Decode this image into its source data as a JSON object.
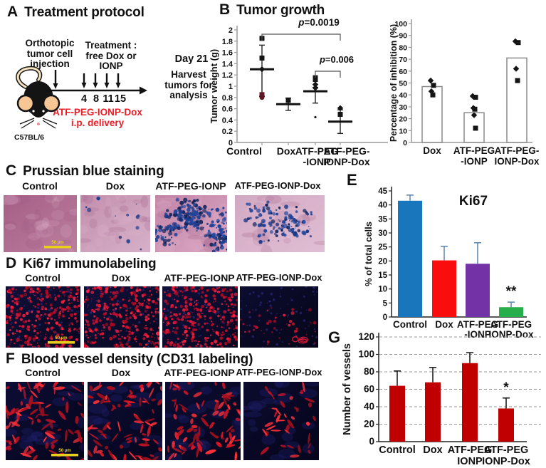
{
  "panelA": {
    "letter": "A",
    "title": "Treatment protocol",
    "injection_label": "Orthotopic\ntumor cell\ninjection",
    "treatment_label": "Treatment :\nfree Dox or\nIONP",
    "day_label": "Day 21",
    "harvest_label": "Harvest\ntumors for\nanalysis",
    "timeline_days": [
      "4",
      "8",
      "11",
      "15"
    ],
    "delivery_line1": "ATF-PEG-IONP-Dox",
    "delivery_line2": "i.p. delivery",
    "delivery_color": "#ed1c24",
    "mouse_strain": "C57BL/6"
  },
  "panelB": {
    "letter": "B",
    "title": "Tumor growth"
  },
  "panelC": {
    "letter": "C",
    "title": "Prussian blue staining",
    "scalebar": "50 µm",
    "images": [
      {
        "label": "Control",
        "render": "bf-none",
        "appearance": "magenta tissue, no iron staining"
      },
      {
        "label": "Dox",
        "render": "bf-light",
        "appearance": "pale pink tissue, no iron staining"
      },
      {
        "label": "ATF-PEG-IONP",
        "render": "bf-heavy",
        "appearance": "dense Prussian blue iron deposits"
      },
      {
        "label": "ATF-PEG-IONP-Dox",
        "render": "bf-moderate",
        "appearance": "moderate Prussian blue iron deposits"
      }
    ]
  },
  "panelD": {
    "letter": "D",
    "title": "Ki67 immunolabeling",
    "scalebar": "50 µm",
    "images": [
      {
        "label": "Control",
        "render": "fl-dots-dense",
        "appearance": "abundant red Ki67+ nuclei"
      },
      {
        "label": "Dox",
        "render": "fl-dots-dense",
        "appearance": "abundant red Ki67+ nuclei"
      },
      {
        "label": "ATF-PEG-IONP",
        "render": "fl-dots-dense",
        "appearance": "abundant red Ki67+ nuclei"
      },
      {
        "label": "ATF-PEG-IONP-Dox",
        "render": "fl-dots-sparse",
        "appearance": "few red Ki67+ nuclei"
      }
    ]
  },
  "panelE": {
    "letter": "E"
  },
  "panelF": {
    "letter": "F",
    "title": "Blood vessel density (CD31 labeling)",
    "scalebar": "50 µm",
    "images": [
      {
        "label": "Control",
        "render": "fl-vessels-many",
        "appearance": "many red CD31+ vessels"
      },
      {
        "label": "Dox",
        "render": "fl-vessels-many",
        "appearance": "many red CD31+ vessels"
      },
      {
        "label": "ATF-PEG-IONP",
        "render": "fl-vessels-many",
        "appearance": "many red CD31+ vessels"
      },
      {
        "label": "ATF-PEG-IONP-Dox",
        "render": "fl-vessels-few",
        "appearance": "few red CD31+ vessels"
      }
    ]
  },
  "panelG": {
    "letter": "G"
  },
  "chart_data": [
    {
      "type": "scatter",
      "panel": "B",
      "title": "Tumor growth",
      "ylabel": "Tumor weight (g)",
      "ylim": [
        0,
        2
      ],
      "yticks": [
        "0",
        "0.2",
        "0.4",
        "0.6",
        "0.8",
        "1",
        "1.2",
        "1.4",
        "1.6",
        "1.8",
        "2"
      ],
      "categories": [
        [
          "Control"
        ],
        [
          "Dox"
        ],
        [
          "ATF-PEG",
          "-IONP"
        ],
        [
          "ATF-PEG-",
          "IONP-Dox"
        ]
      ],
      "groups": [
        {
          "name": "Control",
          "points": [
            1.85,
            1.5,
            1.3,
            0.85,
            0.8
          ],
          "shapes": [
            "square",
            "square",
            "diamond",
            "square",
            "circle"
          ],
          "colors": [
            "#151515",
            "#151515",
            "#151515",
            "#5f1726",
            "#5f1726"
          ],
          "mean": 1.3,
          "err_lo": 0.82,
          "err_hi": 1.73
        },
        {
          "name": "Dox",
          "points": [
            0.75
          ],
          "shapes": [
            "square"
          ],
          "colors": [
            "#151515"
          ],
          "mean": 0.68,
          "err_lo": 0.57,
          "err_hi": 0.79
        },
        {
          "name": "ATF-PEG-IONP",
          "points": [
            1.15,
            1.12,
            1.03,
            0.97,
            0.45
          ],
          "shapes": [
            "square",
            "square",
            "diamond",
            "diamond",
            "dot"
          ],
          "colors": [
            "#151515",
            "#151515",
            "#151515",
            "#151515",
            "#151515"
          ],
          "mean": 0.91,
          "err_lo": 0.7,
          "err_hi": 0.98
        },
        {
          "name": "ATF-PEG-IONP-Dox",
          "points": [
            0.61,
            0.5
          ],
          "shapes": [
            "diamond",
            "square"
          ],
          "colors": [
            "#151515",
            "#151515"
          ],
          "mean": 0.37,
          "err_lo": 0.16,
          "err_hi": 0.58
        }
      ],
      "significance": [
        {
          "label": "p=0.0019",
          "from": 0,
          "to": 3
        },
        {
          "label": "p=0.006",
          "from": 2,
          "to": 3
        }
      ]
    },
    {
      "type": "bar",
      "panel": "B",
      "ylabel": "Percentage of inhibition (%)",
      "ylim": [
        0,
        100
      ],
      "ytick_step": 10,
      "categories": [
        [
          "Dox"
        ],
        [
          "ATF-PEG",
          "-IONP"
        ],
        [
          "ATF-PEG-",
          "IONP-Dox"
        ]
      ],
      "values": [
        47,
        25,
        71
      ],
      "points": [
        [
          52,
          48,
          43,
          40
        ],
        [
          39,
          38,
          29,
          28,
          23,
          12
        ],
        [
          85,
          84,
          62,
          52
        ]
      ],
      "bar_fill": "#ffffff",
      "bar_stroke": "#8a8a8a"
    },
    {
      "type": "bar",
      "panel": "E",
      "title": "Ki67",
      "ylabel": "% of total cells",
      "ylim": [
        0,
        45
      ],
      "ytick_step": 5,
      "categories": [
        [
          "Control"
        ],
        [
          "Dox"
        ],
        [
          "ATF-PEG",
          "-IONP"
        ],
        [
          "ATF-PEG",
          "IONP-Dox"
        ]
      ],
      "values": [
        41.5,
        20.2,
        19,
        3.5
      ],
      "errors": [
        2,
        5,
        7.5,
        1.8
      ],
      "colors": [
        "#1a76bc",
        "#f90d0d",
        "#7333a7",
        "#28ae4a"
      ],
      "error_color": "#5b84b1",
      "annotations": [
        {
          "index": 3,
          "text": "**"
        }
      ]
    },
    {
      "type": "bar",
      "panel": "G",
      "ylabel": "Number of vessels",
      "ylim": [
        0,
        120
      ],
      "ytick_step": 20,
      "categories": [
        [
          "Control"
        ],
        [
          "Dox"
        ],
        [
          "ATF-PEG",
          "IONP"
        ],
        [
          "ATF-PEG",
          "IONP-Dox"
        ]
      ],
      "values": [
        64,
        68,
        90,
        38
      ],
      "errors": [
        17,
        17,
        12,
        12
      ],
      "colors": [
        "#c00000",
        "#c00000",
        "#c00000",
        "#c00000"
      ],
      "error_color": "#111111",
      "grid": "dashed",
      "annotations": [
        {
          "index": 3,
          "text": "*"
        }
      ]
    }
  ]
}
